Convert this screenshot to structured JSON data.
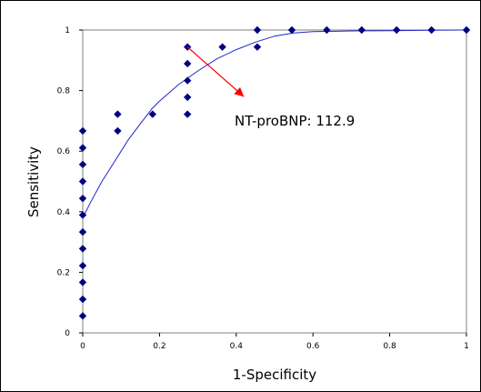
{
  "chart_data": {
    "type": "scatter",
    "title": "",
    "xlabel": "1-Specificity",
    "ylabel": "Sensitivity",
    "xlim": [
      0,
      1
    ],
    "ylim": [
      0,
      1
    ],
    "x_ticks": [
      "0",
      "0.2",
      "0.4",
      "0.6",
      "0.8",
      "1"
    ],
    "y_ticks": [
      "0",
      "0.2",
      "0.4",
      "0.6",
      "0.8",
      "1"
    ],
    "grid": false,
    "legend": "none",
    "series": [
      {
        "marker": "diamond",
        "color": "#000080",
        "points": [
          [
            0,
            0.056
          ],
          [
            0,
            0.111
          ],
          [
            0,
            0.167
          ],
          [
            0,
            0.222
          ],
          [
            0,
            0.278
          ],
          [
            0,
            0.333
          ],
          [
            0,
            0.389
          ],
          [
            0,
            0.444
          ],
          [
            0,
            0.5
          ],
          [
            0,
            0.556
          ],
          [
            0,
            0.611
          ],
          [
            0,
            0.667
          ],
          [
            0.091,
            0.667
          ],
          [
            0.091,
            0.722
          ],
          [
            0.182,
            0.722
          ],
          [
            0.273,
            0.722
          ],
          [
            0.273,
            0.778
          ],
          [
            0.273,
            0.833
          ],
          [
            0.273,
            0.889
          ],
          [
            0.273,
            0.944
          ],
          [
            0.364,
            0.944
          ],
          [
            0.455,
            0.944
          ],
          [
            0.455,
            1
          ],
          [
            0.545,
            1
          ],
          [
            0.636,
            1
          ],
          [
            0.727,
            1
          ],
          [
            0.818,
            1
          ],
          [
            0.909,
            1
          ],
          [
            1,
            1
          ]
        ]
      },
      {
        "type": "line",
        "color": "#2222cc",
        "x": [
          0,
          0.02,
          0.05,
          0.08,
          0.1,
          0.12,
          0.15,
          0.18,
          0.2,
          0.25,
          0.3,
          0.35,
          0.4,
          0.45,
          0.5,
          0.55,
          0.6,
          0.7,
          0.8,
          0.9,
          1
        ],
        "y": [
          0.38,
          0.43,
          0.5,
          0.56,
          0.6,
          0.64,
          0.69,
          0.74,
          0.765,
          0.82,
          0.865,
          0.905,
          0.935,
          0.96,
          0.98,
          0.99,
          0.995,
          0.997,
          0.998,
          0.999,
          1
        ]
      }
    ],
    "annotation": {
      "text": "NT-proBNP: 112.9",
      "arrow_from": [
        0.273,
        0.944
      ],
      "arrow_to": [
        0.42,
        0.78
      ],
      "arrow_color": "#ff0000"
    }
  }
}
